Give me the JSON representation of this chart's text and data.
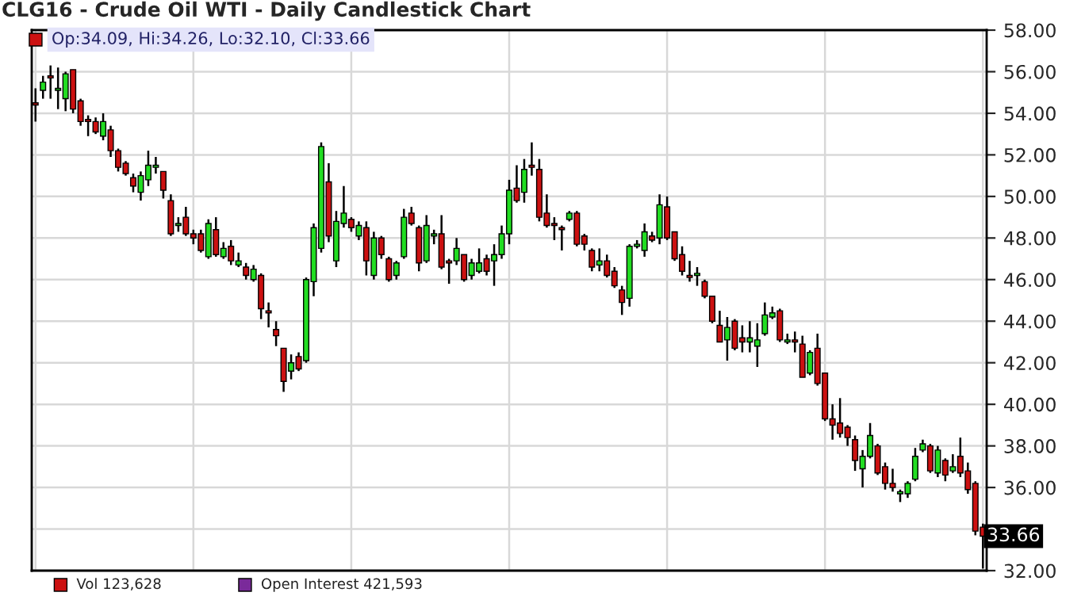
{
  "chart_data": {
    "type": "candlestick",
    "title": "CLG16 - Crude Oil WTI - Daily Candlestick Chart",
    "categories": [
      null,
      null,
      null,
      null,
      null,
      null,
      null,
      null,
      null,
      null,
      null,
      null,
      null,
      null,
      null,
      null,
      null,
      null,
      null,
      null,
      null,
      null,
      null,
      null,
      null,
      null,
      null,
      null,
      null,
      null,
      null,
      null,
      null,
      null,
      null,
      null,
      null,
      null,
      null,
      null,
      null,
      null,
      null,
      null,
      null,
      null,
      null,
      null,
      null,
      null,
      null,
      null,
      null,
      null,
      null,
      null,
      null,
      null,
      null,
      null,
      null,
      null,
      null,
      null,
      null,
      null,
      null,
      null,
      null,
      null,
      null,
      null,
      null,
      null,
      null,
      null,
      null,
      null,
      null,
      null,
      null,
      null,
      null,
      null,
      null,
      null,
      null,
      null,
      null,
      null,
      null,
      null,
      null,
      null,
      null,
      null,
      null,
      null,
      null,
      null,
      null,
      null,
      null,
      null,
      null,
      null,
      null,
      null,
      null,
      null,
      null,
      null,
      null,
      null,
      null,
      null,
      null,
      null,
      null,
      null,
      null,
      null,
      null,
      null,
      null,
      null,
      null
    ],
    "ohlc": [
      [
        54.5,
        55.2,
        53.6,
        54.4
      ],
      [
        55.1,
        55.8,
        54.7,
        55.5
      ],
      [
        55.8,
        56.3,
        54.7,
        55.7
      ],
      [
        55.1,
        56.2,
        54.2,
        55.2
      ],
      [
        54.7,
        56.0,
        54.1,
        55.9
      ],
      [
        56.1,
        56.1,
        54.0,
        54.2
      ],
      [
        54.6,
        54.7,
        53.4,
        53.6
      ],
      [
        53.7,
        53.9,
        52.9,
        53.6
      ],
      [
        53.6,
        53.8,
        53.0,
        53.1
      ],
      [
        52.9,
        54.0,
        52.7,
        53.6
      ],
      [
        53.2,
        53.4,
        51.9,
        52.2
      ],
      [
        52.2,
        52.3,
        51.2,
        51.4
      ],
      [
        51.6,
        51.7,
        51.0,
        51.1
      ],
      [
        50.9,
        51.1,
        50.2,
        50.5
      ],
      [
        50.2,
        51.2,
        49.8,
        51.0
      ],
      [
        50.8,
        52.2,
        50.5,
        51.5
      ],
      [
        51.4,
        51.9,
        51.1,
        51.5
      ],
      [
        51.2,
        51.2,
        49.9,
        50.3
      ],
      [
        49.8,
        50.1,
        48.1,
        48.2
      ],
      [
        48.6,
        49.0,
        48.3,
        48.7
      ],
      [
        49.0,
        49.5,
        48.1,
        48.2
      ],
      [
        48.2,
        48.4,
        47.7,
        48.0
      ],
      [
        48.2,
        48.4,
        47.3,
        47.4
      ],
      [
        47.1,
        48.9,
        47.0,
        48.7
      ],
      [
        48.4,
        49.0,
        47.1,
        47.2
      ],
      [
        47.1,
        47.8,
        47.0,
        47.5
      ],
      [
        47.6,
        47.9,
        46.7,
        46.9
      ],
      [
        46.7,
        47.3,
        46.6,
        46.9
      ],
      [
        46.6,
        46.8,
        46.0,
        46.2
      ],
      [
        46.0,
        46.7,
        45.9,
        46.5
      ],
      [
        46.2,
        46.3,
        44.1,
        44.6
      ],
      [
        44.5,
        44.9,
        43.7,
        44.4
      ],
      [
        43.6,
        44.0,
        42.8,
        43.3
      ],
      [
        42.7,
        42.7,
        40.6,
        41.1
      ],
      [
        41.6,
        42.4,
        41.2,
        42.0
      ],
      [
        42.3,
        42.5,
        41.6,
        41.7
      ],
      [
        42.1,
        46.1,
        42.0,
        46.0
      ],
      [
        45.9,
        48.7,
        45.2,
        48.5
      ],
      [
        47.5,
        52.6,
        47.3,
        52.4
      ],
      [
        50.7,
        51.6,
        47.8,
        48.1
      ],
      [
        46.9,
        49.3,
        46.6,
        48.8
      ],
      [
        48.7,
        50.5,
        48.5,
        49.2
      ],
      [
        48.9,
        49.0,
        48.3,
        48.5
      ],
      [
        48.1,
        48.8,
        47.9,
        48.6
      ],
      [
        48.5,
        48.8,
        46.2,
        46.9
      ],
      [
        46.2,
        48.3,
        46.0,
        48.0
      ],
      [
        48.0,
        48.1,
        47.0,
        47.2
      ],
      [
        47.0,
        47.1,
        45.9,
        46.0
      ],
      [
        46.2,
        46.9,
        46.0,
        46.8
      ],
      [
        47.1,
        49.4,
        47.0,
        49.0
      ],
      [
        49.2,
        49.5,
        48.6,
        48.7
      ],
      [
        48.5,
        48.6,
        46.4,
        46.8
      ],
      [
        46.9,
        49.1,
        46.8,
        48.6
      ],
      [
        48.1,
        48.4,
        47.7,
        48.2
      ],
      [
        48.2,
        49.1,
        46.5,
        46.6
      ],
      [
        46.9,
        47.0,
        45.8,
        46.8
      ],
      [
        46.9,
        48.0,
        46.7,
        47.5
      ],
      [
        47.2,
        47.2,
        45.9,
        46.0
      ],
      [
        46.2,
        47.0,
        46.0,
        46.8
      ],
      [
        46.4,
        47.5,
        46.3,
        46.8
      ],
      [
        47.0,
        47.2,
        46.2,
        46.4
      ],
      [
        46.9,
        47.7,
        45.7,
        47.2
      ],
      [
        47.2,
        48.6,
        47.0,
        48.2
      ],
      [
        48.2,
        50.8,
        47.7,
        50.3
      ],
      [
        50.4,
        51.5,
        49.7,
        49.8
      ],
      [
        50.2,
        51.8,
        49.7,
        51.3
      ],
      [
        51.5,
        52.6,
        51.0,
        51.4
      ],
      [
        51.3,
        51.8,
        48.8,
        49.0
      ],
      [
        49.2,
        50.1,
        48.5,
        48.6
      ],
      [
        48.7,
        49.0,
        47.9,
        48.6
      ],
      [
        48.5,
        48.6,
        47.4,
        48.4
      ],
      [
        48.9,
        49.3,
        48.8,
        49.2
      ],
      [
        49.2,
        49.3,
        47.6,
        47.7
      ],
      [
        48.1,
        48.2,
        47.4,
        47.7
      ],
      [
        47.4,
        47.5,
        46.4,
        46.6
      ],
      [
        46.7,
        47.5,
        46.4,
        46.9
      ],
      [
        46.9,
        47.2,
        46.1,
        46.2
      ],
      [
        46.4,
        46.6,
        45.6,
        45.7
      ],
      [
        45.5,
        45.7,
        44.3,
        44.9
      ],
      [
        45.1,
        47.7,
        44.7,
        47.6
      ],
      [
        47.6,
        47.9,
        47.5,
        47.7
      ],
      [
        47.4,
        48.7,
        47.1,
        48.3
      ],
      [
        48.1,
        48.3,
        47.8,
        47.9
      ],
      [
        48.0,
        50.1,
        47.7,
        49.6
      ],
      [
        49.5,
        50.0,
        47.9,
        48.0
      ],
      [
        48.3,
        48.3,
        46.9,
        47.0
      ],
      [
        47.2,
        47.6,
        46.2,
        46.4
      ],
      [
        46.2,
        46.9,
        45.9,
        46.1
      ],
      [
        46.2,
        46.6,
        45.7,
        46.3
      ],
      [
        45.9,
        46.0,
        45.1,
        45.2
      ],
      [
        45.2,
        45.2,
        43.9,
        44.0
      ],
      [
        43.8,
        44.5,
        43.0,
        43.0
      ],
      [
        43.1,
        44.2,
        42.1,
        43.7
      ],
      [
        44.0,
        44.1,
        42.6,
        42.7
      ],
      [
        43.2,
        43.8,
        42.5,
        43.0
      ],
      [
        43.0,
        44.0,
        42.5,
        43.2
      ],
      [
        42.8,
        43.9,
        41.8,
        43.1
      ],
      [
        43.4,
        44.9,
        43.3,
        44.3
      ],
      [
        44.2,
        44.7,
        44.1,
        44.4
      ],
      [
        44.5,
        44.6,
        43.0,
        43.1
      ],
      [
        43.0,
        43.4,
        42.9,
        43.1
      ],
      [
        43.1,
        43.5,
        42.5,
        43.0
      ],
      [
        42.9,
        43.3,
        41.3,
        41.3
      ],
      [
        41.5,
        42.6,
        41.4,
        42.5
      ],
      [
        42.7,
        43.4,
        40.9,
        41.0
      ],
      [
        41.5,
        41.5,
        39.2,
        39.3
      ],
      [
        39.3,
        40.0,
        38.3,
        39.0
      ],
      [
        39.1,
        40.3,
        38.4,
        38.6
      ],
      [
        38.9,
        39.0,
        38.0,
        38.4
      ],
      [
        38.3,
        38.5,
        36.8,
        37.3
      ],
      [
        36.9,
        37.8,
        36.0,
        37.5
      ],
      [
        37.5,
        39.1,
        37.4,
        38.5
      ],
      [
        38.0,
        38.1,
        36.6,
        36.7
      ],
      [
        37.0,
        37.2,
        35.9,
        36.2
      ],
      [
        36.2,
        36.9,
        35.8,
        36.0
      ],
      [
        35.7,
        35.9,
        35.3,
        35.8
      ],
      [
        35.7,
        36.3,
        35.5,
        36.2
      ],
      [
        36.4,
        37.9,
        36.3,
        37.5
      ],
      [
        37.8,
        38.3,
        37.7,
        38.1
      ],
      [
        38.0,
        38.1,
        36.7,
        36.8
      ],
      [
        36.7,
        38.0,
        36.5,
        37.8
      ],
      [
        37.3,
        37.4,
        36.3,
        36.6
      ],
      [
        36.8,
        37.6,
        36.7,
        37.0
      ],
      [
        37.5,
        38.4,
        36.5,
        36.7
      ],
      [
        36.8,
        37.2,
        35.7,
        35.9
      ],
      [
        36.2,
        36.3,
        33.7,
        33.9
      ],
      [
        34.09,
        34.26,
        32.1,
        33.66
      ]
    ],
    "colors": [
      "#cc1111",
      "#22dd22",
      "#cc1111",
      "#22dd22",
      "#22dd22",
      "#cc1111",
      "#cc1111",
      "#cc1111",
      "#cc1111",
      "#22dd22",
      "#cc1111",
      "#cc1111",
      "#cc1111",
      "#cc1111",
      "#22dd22",
      "#22dd22",
      "#22dd22",
      "#cc1111",
      "#cc1111",
      "#22dd22",
      "#cc1111",
      "#cc1111",
      "#cc1111",
      "#22dd22",
      "#cc1111",
      "#22dd22",
      "#cc1111",
      "#22dd22",
      "#cc1111",
      "#22dd22",
      "#cc1111",
      "#cc1111",
      "#cc1111",
      "#cc1111",
      "#22dd22",
      "#cc1111",
      "#22dd22",
      "#22dd22",
      "#22dd22",
      "#cc1111",
      "#22dd22",
      "#22dd22",
      "#cc1111",
      "#22dd22",
      "#cc1111",
      "#22dd22",
      "#cc1111",
      "#cc1111",
      "#22dd22",
      "#22dd22",
      "#cc1111",
      "#cc1111",
      "#22dd22",
      "#22dd22",
      "#cc1111",
      "#cc1111",
      "#22dd22",
      "#cc1111",
      "#22dd22",
      "#22dd22",
      "#cc1111",
      "#22dd22",
      "#22dd22",
      "#22dd22",
      "#cc1111",
      "#22dd22",
      "#cc1111",
      "#cc1111",
      "#cc1111",
      "#cc1111",
      "#cc1111",
      "#22dd22",
      "#cc1111",
      "#cc1111",
      "#cc1111",
      "#22dd22",
      "#cc1111",
      "#cc1111",
      "#cc1111",
      "#22dd22",
      "#22dd22",
      "#22dd22",
      "#cc1111",
      "#22dd22",
      "#cc1111",
      "#cc1111",
      "#cc1111",
      "#cc1111",
      "#22dd22",
      "#cc1111",
      "#cc1111",
      "#cc1111",
      "#22dd22",
      "#cc1111",
      "#cc1111",
      "#22dd22",
      "#22dd22",
      "#22dd22",
      "#22dd22",
      "#cc1111",
      "#22dd22",
      "#cc1111",
      "#cc1111",
      "#22dd22",
      "#cc1111",
      "#cc1111",
      "#cc1111",
      "#cc1111",
      "#cc1111",
      "#cc1111",
      "#22dd22",
      "#22dd22",
      "#cc1111",
      "#cc1111",
      "#cc1111",
      "#22dd22",
      "#22dd22",
      "#22dd22",
      "#22dd22",
      "#cc1111",
      "#22dd22",
      "#cc1111",
      "#22dd22",
      "#cc1111",
      "#cc1111",
      "#cc1111",
      "#cc1111"
    ],
    "ylim": [
      32,
      58
    ],
    "yticks": [
      {
        "value": 32,
        "label": "32.00"
      },
      {
        "value": 34,
        "label": null
      },
      {
        "value": 36,
        "label": "36.00"
      },
      {
        "value": 38,
        "label": "38.00"
      },
      {
        "value": 40,
        "label": "40.00"
      },
      {
        "value": 42,
        "label": "42.00"
      },
      {
        "value": 44,
        "label": "44.00"
      },
      {
        "value": 46,
        "label": "46.00"
      },
      {
        "value": 48,
        "label": "48.00"
      },
      {
        "value": 50,
        "label": "50.00"
      },
      {
        "value": 52,
        "label": "52.00"
      },
      {
        "value": 54,
        "label": "54.00"
      },
      {
        "value": 56,
        "label": "56.00"
      },
      {
        "value": 58,
        "label": "58.00"
      }
    ],
    "grid": true,
    "tick_labels": "y",
    "annotations": [
      "Op:34.09, Hi:34.26, Lo:32.10, Cl:33.66",
      "Vol 123,628",
      "Open Interest 421,593",
      "33.66"
    ]
  }
}
